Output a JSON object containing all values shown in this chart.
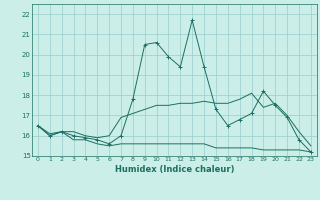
{
  "xlabel": "Humidex (Indice chaleur)",
  "background_color": "#cceee8",
  "grid_color": "#99cccc",
  "line_color": "#1a7060",
  "xlim": [
    -0.5,
    23.5
  ],
  "ylim": [
    15,
    22.5
  ],
  "yticks": [
    15,
    16,
    17,
    18,
    19,
    20,
    21,
    22
  ],
  "xticks": [
    0,
    1,
    2,
    3,
    4,
    5,
    6,
    7,
    8,
    9,
    10,
    11,
    12,
    13,
    14,
    15,
    16,
    17,
    18,
    19,
    20,
    21,
    22,
    23
  ],
  "series1_y": [
    16.5,
    16.0,
    16.2,
    15.8,
    15.8,
    15.6,
    15.5,
    15.6,
    15.6,
    15.6,
    15.6,
    15.6,
    15.6,
    15.6,
    15.6,
    15.4,
    15.4,
    15.4,
    15.4,
    15.3,
    15.3,
    15.3,
    15.3,
    15.2
  ],
  "series2_y": [
    16.5,
    16.1,
    16.2,
    16.2,
    16.0,
    15.9,
    16.0,
    16.9,
    17.1,
    17.3,
    17.5,
    17.5,
    17.6,
    17.6,
    17.7,
    17.6,
    17.6,
    17.8,
    18.1,
    17.4,
    17.6,
    17.0,
    16.2,
    15.5
  ],
  "series3_y": [
    16.5,
    16.0,
    16.2,
    16.0,
    15.9,
    15.8,
    15.6,
    16.0,
    17.8,
    20.5,
    20.6,
    19.9,
    19.4,
    21.7,
    19.4,
    17.3,
    16.5,
    16.8,
    17.1,
    18.2,
    17.5,
    16.9,
    15.8,
    15.2
  ]
}
